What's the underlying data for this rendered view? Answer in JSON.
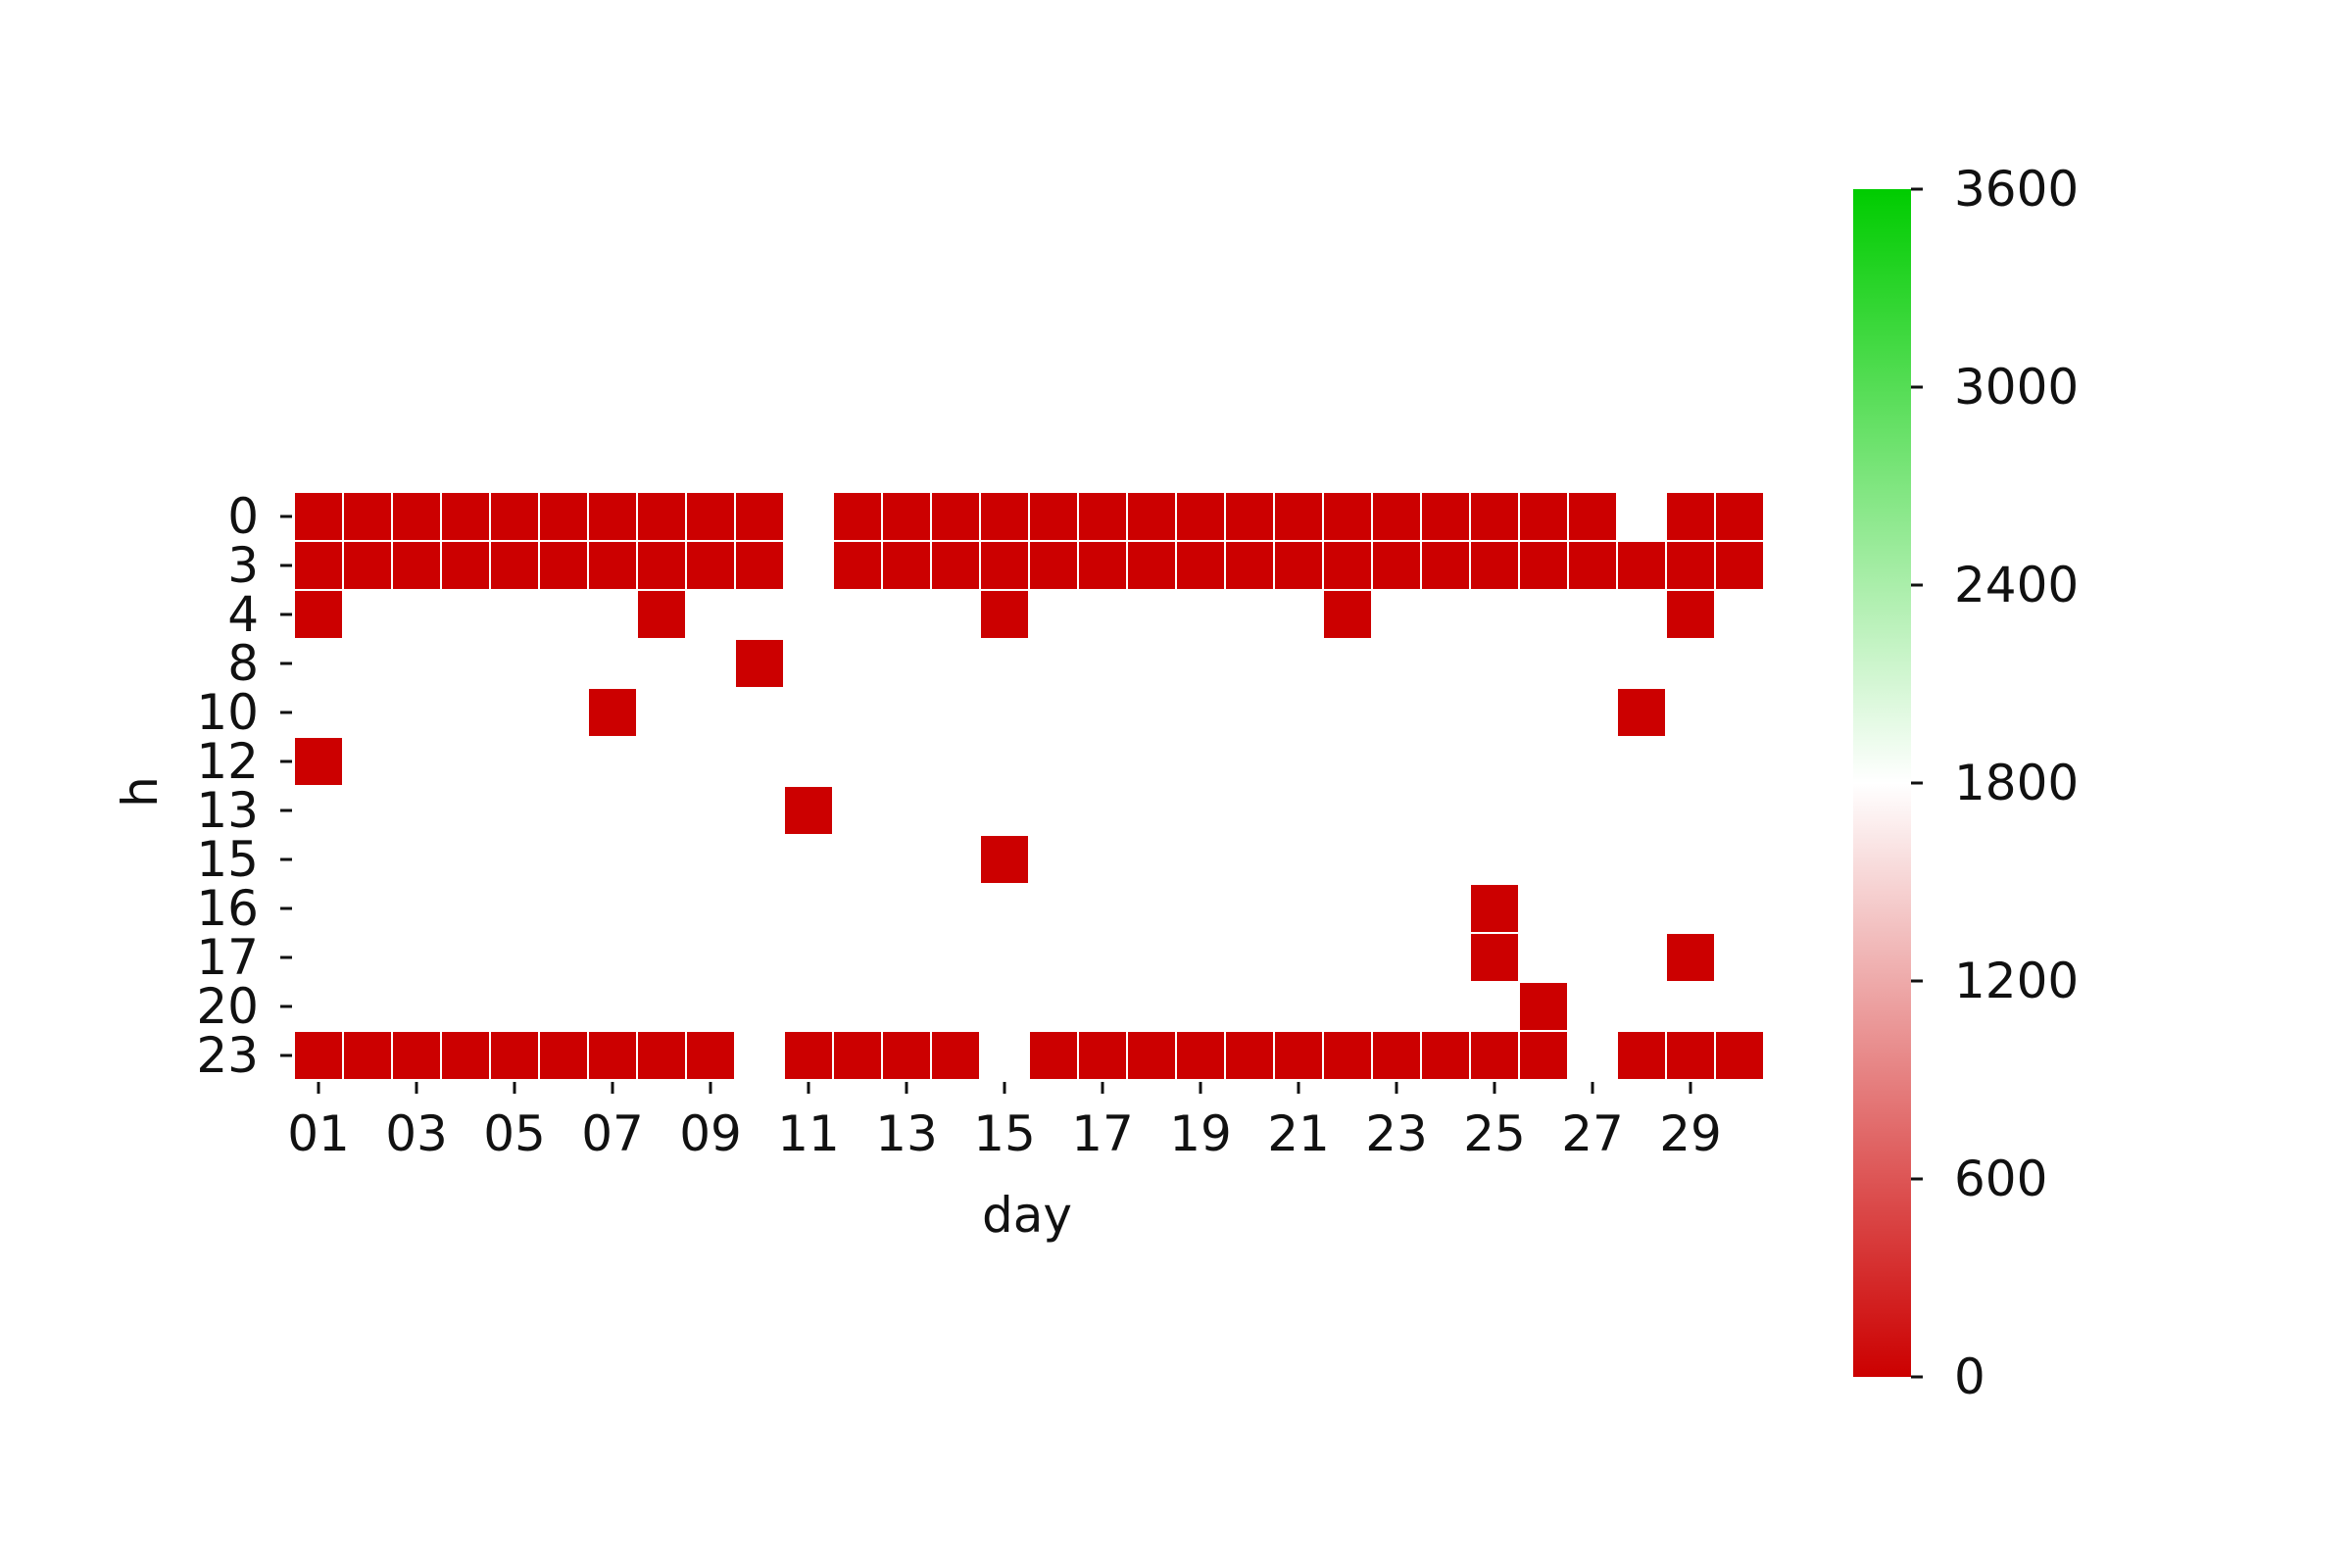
{
  "chart_data": {
    "type": "heatmap",
    "xlabel": "day",
    "ylabel": "h",
    "x_categories": [
      "01",
      "02",
      "03",
      "04",
      "05",
      "06",
      "07",
      "08",
      "09",
      "10",
      "11",
      "12",
      "13",
      "14",
      "15",
      "16",
      "17",
      "18",
      "19",
      "20",
      "21",
      "22",
      "23",
      "24",
      "25",
      "26",
      "27",
      "28",
      "29",
      "30"
    ],
    "x_tick_labels": [
      "01",
      "03",
      "05",
      "07",
      "09",
      "11",
      "13",
      "15",
      "17",
      "19",
      "21",
      "23",
      "25",
      "27",
      "29"
    ],
    "y_categories": [
      "0",
      "3",
      "4",
      "8",
      "10",
      "12",
      "13",
      "15",
      "16",
      "17",
      "20",
      "23"
    ],
    "cells": [
      {
        "h": "0",
        "days": [
          "01",
          "02",
          "03",
          "04",
          "05",
          "06",
          "07",
          "08",
          "09",
          "10",
          "12",
          "13",
          "14",
          "15",
          "16",
          "17",
          "18",
          "19",
          "20",
          "21",
          "22",
          "23",
          "24",
          "25",
          "26",
          "27",
          "29",
          "30"
        ]
      },
      {
        "h": "3",
        "days": [
          "01",
          "02",
          "03",
          "04",
          "05",
          "06",
          "07",
          "08",
          "09",
          "10",
          "12",
          "13",
          "14",
          "15",
          "16",
          "17",
          "18",
          "19",
          "20",
          "21",
          "22",
          "23",
          "24",
          "25",
          "26",
          "27",
          "28",
          "29",
          "30"
        ]
      },
      {
        "h": "4",
        "days": [
          "01",
          "08",
          "15",
          "22",
          "29"
        ]
      },
      {
        "h": "8",
        "days": [
          "10"
        ]
      },
      {
        "h": "10",
        "days": [
          "07",
          "28"
        ]
      },
      {
        "h": "12",
        "days": [
          "01"
        ]
      },
      {
        "h": "13",
        "days": [
          "11"
        ]
      },
      {
        "h": "15",
        "days": [
          "15"
        ]
      },
      {
        "h": "16",
        "days": [
          "25"
        ]
      },
      {
        "h": "17",
        "days": [
          "25",
          "29"
        ]
      },
      {
        "h": "20",
        "days": [
          "26"
        ]
      },
      {
        "h": "23",
        "days": [
          "01",
          "02",
          "03",
          "04",
          "05",
          "06",
          "07",
          "08",
          "09",
          "11",
          "12",
          "13",
          "14",
          "16",
          "17",
          "18",
          "19",
          "20",
          "21",
          "22",
          "23",
          "24",
          "25",
          "26",
          "28",
          "29",
          "30"
        ]
      }
    ],
    "cell_value": 0,
    "colorbar": {
      "min": 0,
      "max": 3600,
      "ticks": [
        "0",
        "600",
        "1200",
        "1800",
        "2400",
        "3000",
        "3600"
      ],
      "colors": {
        "low": "#cc0000",
        "mid": "#ffffff",
        "high": "#00cc00"
      }
    },
    "grid": false
  }
}
